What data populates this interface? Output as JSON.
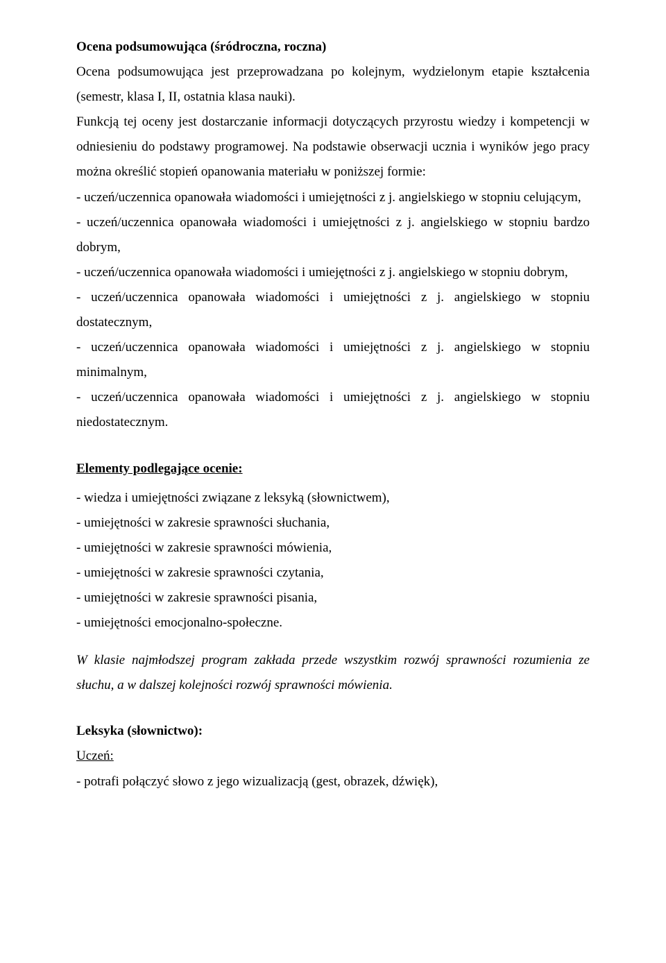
{
  "section1": {
    "title": "Ocena podsumowująca (śródroczna, roczna)",
    "para1": "Ocena podsumowująca jest przeprowadzana po kolejnym, wydzielonym etapie kształcenia (semestr, klasa I, II, ostatnia klasa nauki).",
    "para2": "Funkcją tej oceny jest  dostarczanie informacji dotyczących przyrostu wiedzy i kompetencji w odniesieniu do podstawy programowej. Na podstawie obserwacji ucznia i wyników jego pracy można określić stopień opanowania materiału w poniższej formie:",
    "items": [
      "- uczeń/uczennica opanowała wiadomości i umiejętności z j. angielskiego w stopniu celującym,",
      "- uczeń/uczennica opanowała wiadomości i umiejętności z j. angielskiego w stopniu bardzo dobrym,",
      "- uczeń/uczennica opanowała wiadomości i umiejętności z j. angielskiego w stopniu dobrym,",
      "- uczeń/uczennica opanowała wiadomości i umiejętności z j. angielskiego w stopniu dostatecznym,",
      "- uczeń/uczennica opanowała wiadomości i umiejętności z j. angielskiego w stopniu minimalnym,",
      "- uczeń/uczennica opanowała wiadomości i umiejętności z j. angielskiego w stopniu niedostatecznym."
    ]
  },
  "section2": {
    "title": "Elementy podlegające ocenie:",
    "items": [
      "- wiedza i umiejętności związane z leksyką (słownictwem),",
      "- umiejętności w zakresie sprawności słuchania,",
      "- umiejętności w zakresie sprawności mówienia,",
      "- umiejętności w zakresie sprawności czytania,",
      "- umiejętności w zakresie sprawności pisania,",
      "- umiejętności emocjonalno-społeczne."
    ],
    "italicNote": "W klasie najmłodszej program zakłada przede wszystkim rozwój sprawności rozumienia ze słuchu, a w dalszej kolejności rozwój sprawności mówienia."
  },
  "section3": {
    "title": "Leksyka (słownictwo):",
    "sub": "Uczeń:",
    "item": "- potrafi połączyć słowo z jego wizualizacją (gest, obrazek, dźwięk),"
  }
}
